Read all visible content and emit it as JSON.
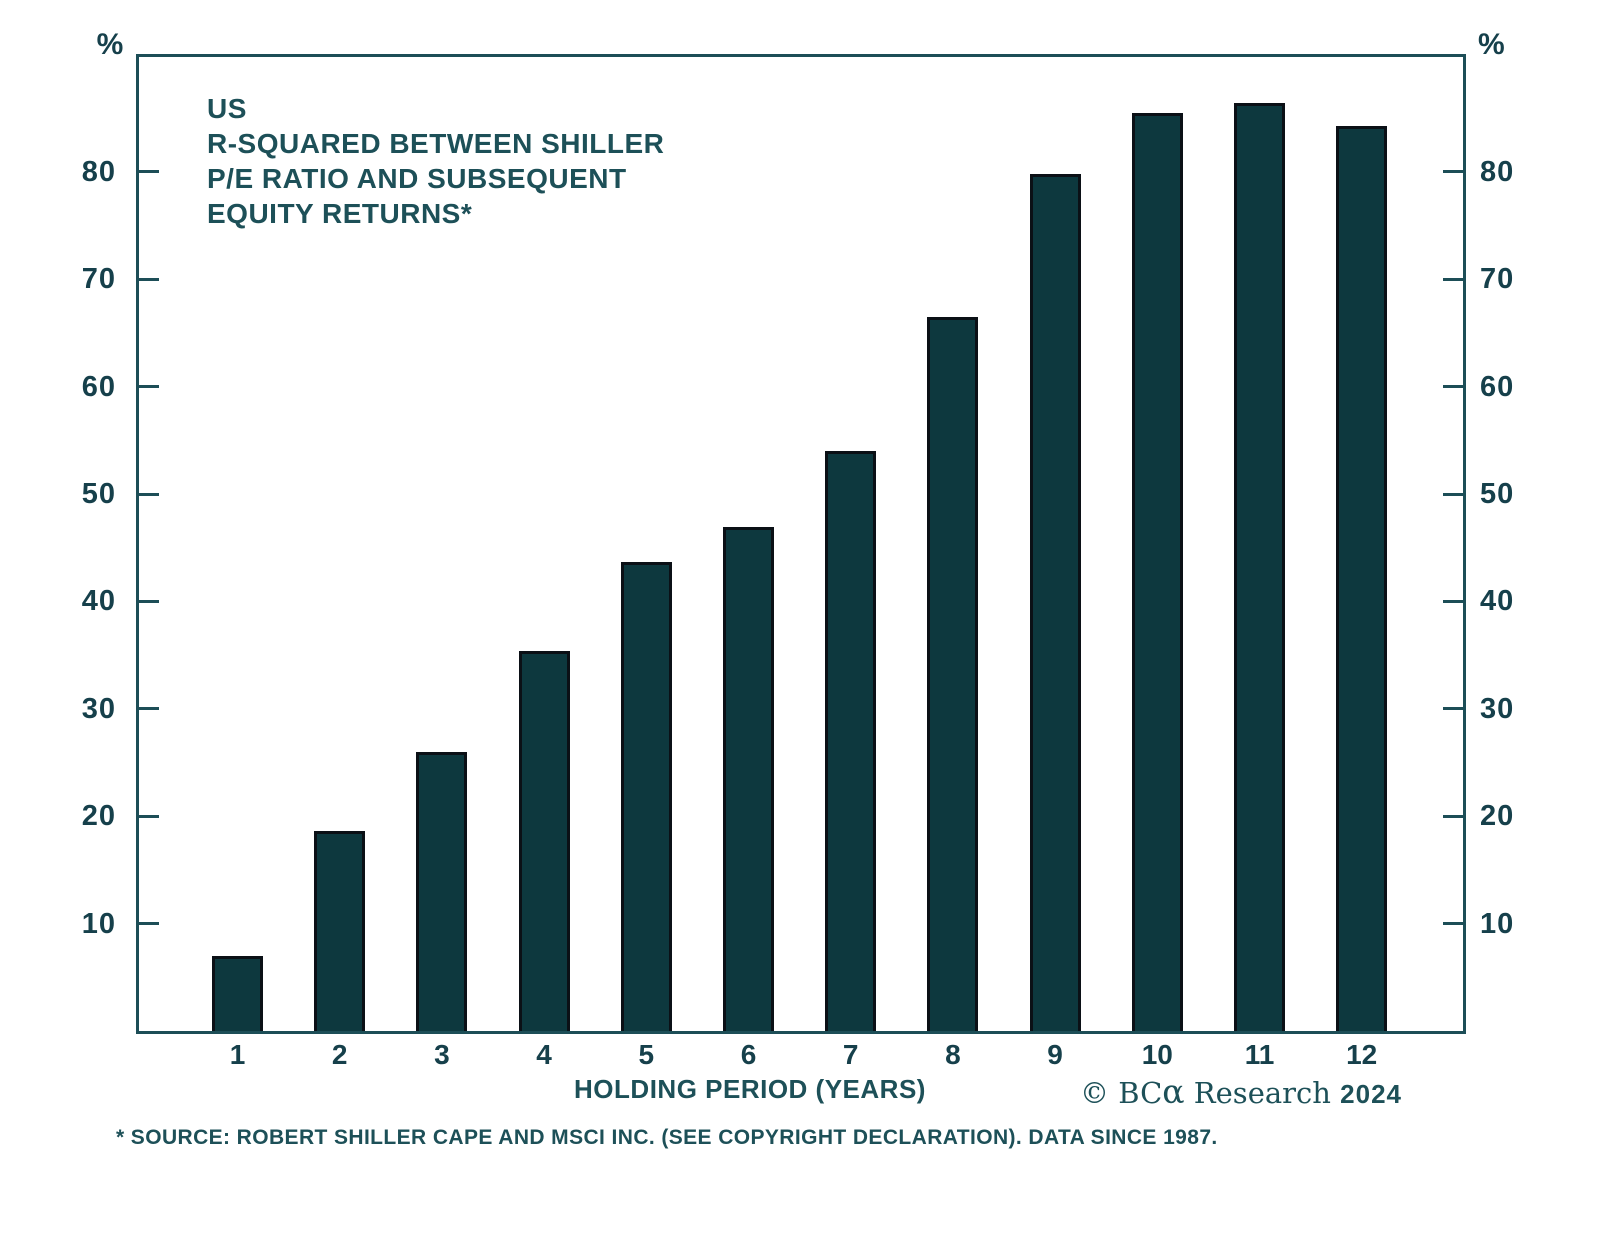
{
  "chart_data": {
    "type": "bar",
    "title_lines": [
      "US",
      "R-SQUARED BETWEEN SHILLER",
      "P/E RATIO AND SUBSEQUENT",
      "EQUITY RETURNS*"
    ],
    "categories": [
      "1",
      "2",
      "3",
      "4",
      "5",
      "6",
      "7",
      "8",
      "9",
      "10",
      "11",
      "12"
    ],
    "values": [
      7,
      18.6,
      26,
      35.4,
      43.7,
      46.9,
      54,
      66.5,
      79.8,
      85.5,
      86.4,
      84.3
    ],
    "xlabel": "HOLDING PERIOD (YEARS)",
    "ylabel": "",
    "y_unit": "%",
    "y_ticks": [
      10,
      20,
      30,
      40,
      50,
      60,
      70,
      80
    ],
    "ylim": [
      0,
      90.7
    ],
    "grid": false,
    "legend": "none",
    "bar_color": "#0d383e",
    "bar_border_color": "#0b1016",
    "axis_color": "#1d4e57",
    "text_color": "#1d5058"
  },
  "footer": {
    "copyright_prefix": "© BC",
    "copyright_alpha": "α",
    "copyright_suffix": " Research ",
    "copyright_year": "2024",
    "footnote": "* SOURCE: ROBERT SHILLER CAPE AND MSCI INC. (SEE COPYRIGHT DECLARATION). DATA SINCE 1987."
  }
}
